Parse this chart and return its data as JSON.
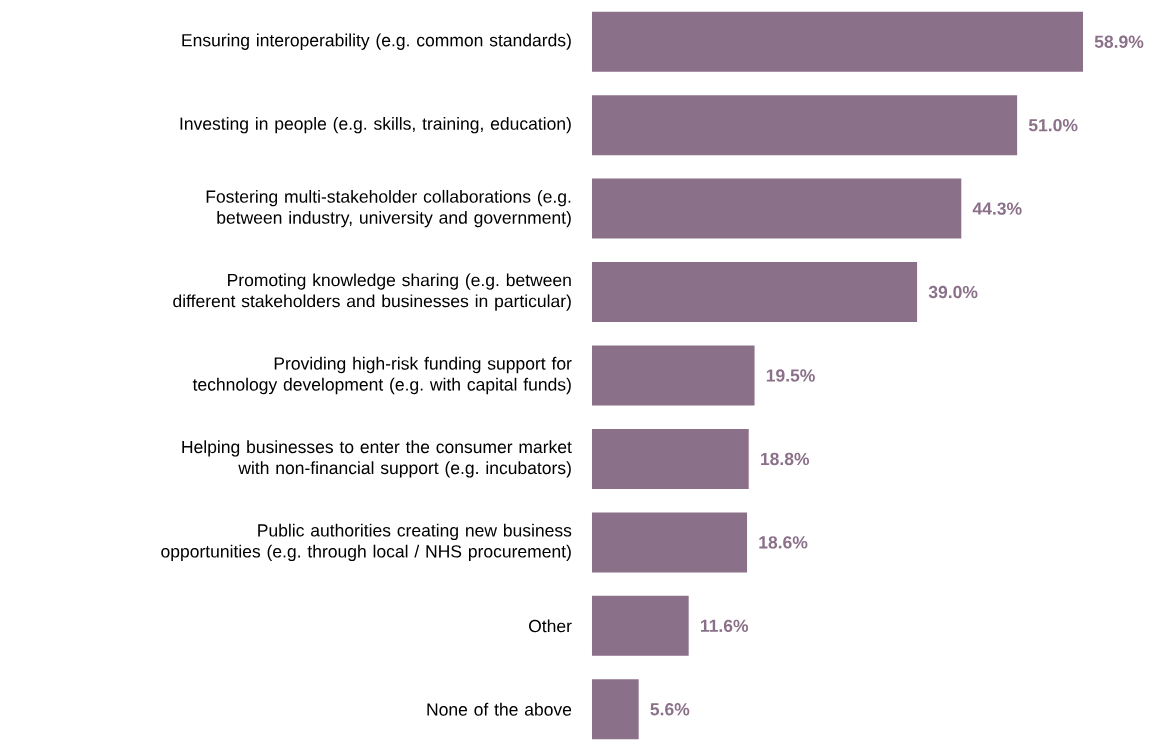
{
  "chart_data": {
    "type": "bar",
    "orientation": "horizontal",
    "color": "#8b7089",
    "categories": [
      "Ensuring interoperability (e.g. common standards)",
      "Investing in people (e.g. skills, training, education)",
      "Fostering multi-stakeholder collaborations (e.g. between industry, university and government)",
      "Promoting knowledge sharing (e.g. between different stakeholders and businesses in particular)",
      "Providing high-risk funding support for technology development (e.g. with capital funds)",
      "Helping businesses to enter the consumer market with non-financial support (e.g. incubators)",
      "Public authorities creating new business opportunities (e.g. through local / NHS procurement)",
      "Other",
      "None of the above"
    ],
    "values": [
      58.9,
      51.0,
      44.3,
      39.0,
      19.5,
      18.8,
      18.6,
      11.6,
      5.6
    ],
    "value_labels": [
      "58.9%",
      "51.0%",
      "44.3%",
      "39.0%",
      "19.5%",
      "18.8%",
      "18.6%",
      "11.6%",
      "5.6%"
    ]
  }
}
